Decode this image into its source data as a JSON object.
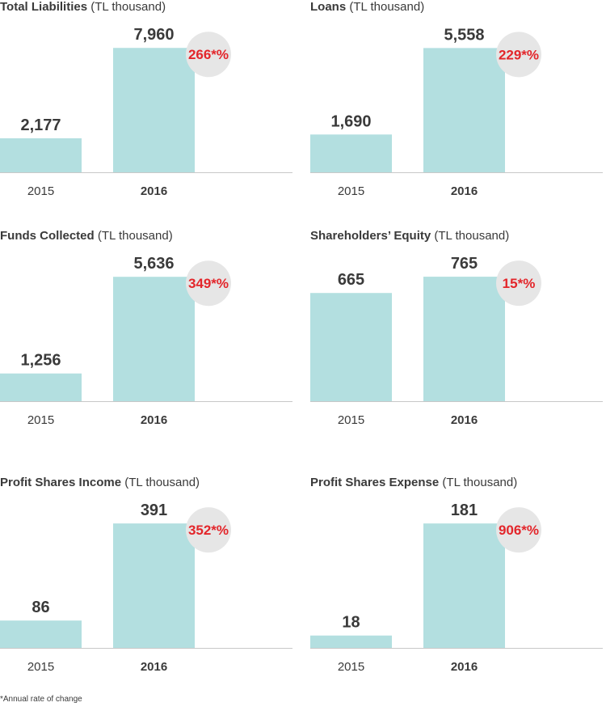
{
  "colors": {
    "bar": "#b3dfe0",
    "axis": "#c8c8c8",
    "text": "#3a3a3a",
    "badge_bg": "#e6e6e6",
    "badge_text": "#e3262b"
  },
  "unit_label": "(TL thousand)",
  "footnote": "*Annual rate of change",
  "chart_data": [
    {
      "type": "bar",
      "title": "Total Liabilities",
      "unit": "(TL thousand)",
      "categories": [
        "2015",
        "2016"
      ],
      "values": [
        2177,
        7960
      ],
      "value_labels": [
        "2,177",
        "7,960"
      ],
      "ylim": [
        0,
        8800
      ],
      "change": "266",
      "change_suffix": "*%"
    },
    {
      "type": "bar",
      "title": "Loans",
      "unit": "(TL thousand)",
      "categories": [
        "2015",
        "2016"
      ],
      "values": [
        1690,
        5558
      ],
      "value_labels": [
        "1,690",
        "5,558"
      ],
      "ylim": [
        0,
        6150
      ],
      "change": "229",
      "change_suffix": "*%"
    },
    {
      "type": "bar",
      "title": "Funds Collected",
      "unit": "(TL thousand)",
      "categories": [
        "2015",
        "2016"
      ],
      "values": [
        1256,
        5636
      ],
      "value_labels": [
        "1,256",
        "5,636"
      ],
      "ylim": [
        0,
        6230
      ],
      "change": "349",
      "change_suffix": "*%"
    },
    {
      "type": "bar",
      "title": "Shareholders’ Equity",
      "unit": "(TL thousand)",
      "categories": [
        "2015",
        "2016"
      ],
      "values": [
        665,
        765
      ],
      "value_labels": [
        "665",
        "765"
      ],
      "ylim": [
        0,
        845
      ],
      "change": "15",
      "change_suffix": "*%"
    },
    {
      "type": "bar",
      "title": "Profit Shares Income",
      "unit": "(TL thousand)",
      "categories": [
        "2015",
        "2016"
      ],
      "values": [
        86,
        391
      ],
      "value_labels": [
        "86",
        "391"
      ],
      "ylim": [
        0,
        432
      ],
      "change": "352",
      "change_suffix": "*%"
    },
    {
      "type": "bar",
      "title": "Profit Shares Expense",
      "unit": "(TL thousand)",
      "categories": [
        "2015",
        "2016"
      ],
      "values": [
        18,
        181
      ],
      "value_labels": [
        "18",
        "181"
      ],
      "ylim": [
        0,
        200
      ],
      "change": "906",
      "change_suffix": "*%"
    }
  ]
}
